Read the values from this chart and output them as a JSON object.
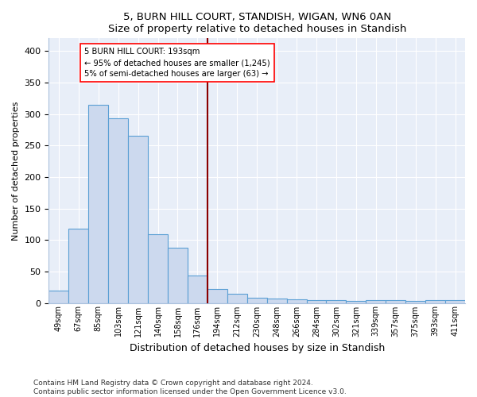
{
  "title": "5, BURN HILL COURT, STANDISH, WIGAN, WN6 0AN",
  "subtitle": "Size of property relative to detached houses in Standish",
  "xlabel": "Distribution of detached houses by size in Standish",
  "ylabel": "Number of detached properties",
  "categories": [
    "49sqm",
    "67sqm",
    "85sqm",
    "103sqm",
    "121sqm",
    "140sqm",
    "158sqm",
    "176sqm",
    "194sqm",
    "212sqm",
    "230sqm",
    "248sqm",
    "266sqm",
    "284sqm",
    "302sqm",
    "321sqm",
    "339sqm",
    "357sqm",
    "375sqm",
    "393sqm",
    "411sqm"
  ],
  "values": [
    20,
    118,
    315,
    293,
    265,
    109,
    88,
    44,
    22,
    15,
    8,
    7,
    6,
    5,
    4,
    3,
    4,
    5,
    3,
    4,
    4
  ],
  "bar_color": "#ccd9ee",
  "bar_edge_color": "#5a9fd4",
  "annotation_line1": "5 BURN HILL COURT: 193sqm",
  "annotation_line2": "← 95% of detached houses are smaller (1,245)",
  "annotation_line3": "5% of semi-detached houses are larger (63) →",
  "ylim": [
    0,
    420
  ],
  "plot_bg_color": "#e8eef8",
  "fig_bg_color": "#ffffff",
  "footer": "Contains HM Land Registry data © Crown copyright and database right 2024.\nContains public sector information licensed under the Open Government Licence v3.0."
}
